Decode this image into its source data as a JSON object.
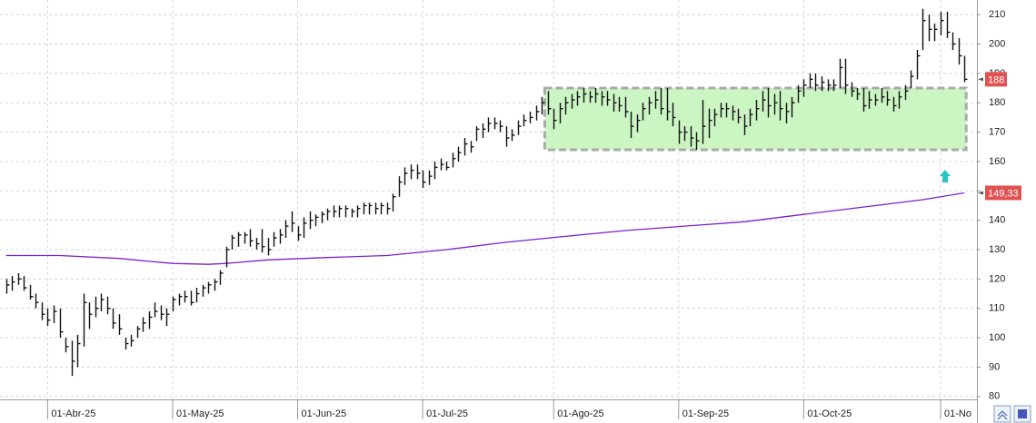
{
  "chart_data": {
    "type": "ohlc",
    "xlim": [
      0,
      164.1
    ],
    "ylim": [
      79,
      215
    ],
    "yticks": [
      80,
      90,
      100,
      110,
      120,
      130,
      140,
      150,
      160,
      170,
      180,
      190,
      200,
      210
    ],
    "xticks": [
      {
        "value": 8,
        "label": "01-Abr-25"
      },
      {
        "value": 29,
        "label": "01-May-25"
      },
      {
        "value": 50,
        "label": "01-Jun-25"
      },
      {
        "value": 71,
        "label": "01-Jul-25"
      },
      {
        "value": 93,
        "label": "01-Ago-25"
      },
      {
        "value": 114,
        "label": "01-Sep-25"
      },
      {
        "value": 135,
        "label": "01-Oct-25"
      },
      {
        "value": 158,
        "label": "01-No"
      }
    ],
    "grid": true,
    "ohlc": {
      "color": "#111111",
      "start": 1,
      "high": [
        120,
        121,
        122,
        121,
        118,
        115,
        112,
        110,
        111,
        110,
        100,
        99,
        101,
        115,
        112,
        114,
        115,
        114,
        110,
        108,
        100,
        101,
        104,
        107,
        109,
        112,
        111,
        110,
        114,
        115,
        116,
        116,
        117,
        118,
        119,
        120,
        123,
        131,
        135,
        136,
        136,
        137,
        134,
        137,
        134,
        136,
        137,
        140,
        143,
        138,
        141,
        143,
        142,
        143,
        144,
        145,
        145,
        145,
        144,
        145,
        146,
        146,
        146,
        146,
        146,
        149,
        155,
        158,
        159,
        159,
        157,
        157,
        160,
        161,
        160,
        163,
        165,
        168,
        167,
        172,
        173,
        175,
        175,
        174,
        172,
        171,
        174,
        176,
        177,
        179,
        182,
        184,
        178,
        180,
        182,
        183,
        184,
        185,
        184,
        185,
        184,
        184,
        183,
        182,
        182,
        177,
        176,
        180,
        182,
        184,
        185,
        185,
        180,
        174,
        172,
        172,
        170,
        181,
        178,
        178,
        180,
        180,
        179,
        178,
        176,
        178,
        181,
        184,
        185,
        183,
        184,
        180,
        182,
        186,
        188,
        190,
        190,
        189,
        188,
        188,
        195,
        195,
        187,
        185,
        185,
        184,
        183,
        185,
        184,
        182,
        184,
        186,
        191,
        198,
        212,
        210,
        207,
        211,
        211,
        204,
        202,
        196
      ],
      "low": [
        115,
        116,
        118,
        116,
        113,
        110,
        106,
        104,
        105,
        100,
        95,
        87,
        90,
        97,
        103,
        107,
        109,
        108,
        103,
        101,
        96,
        97,
        100,
        102,
        103,
        107,
        106,
        104,
        109,
        111,
        112,
        111,
        112,
        114,
        115,
        116,
        118,
        124,
        130,
        131,
        132,
        131,
        130,
        129,
        128,
        131,
        132,
        134,
        136,
        133,
        134,
        137,
        138,
        139,
        140,
        141,
        141,
        141,
        141,
        141,
        142,
        142,
        142,
        142,
        142,
        143,
        148,
        152,
        154,
        154,
        151,
        152,
        154,
        157,
        157,
        158,
        160,
        162,
        163,
        167,
        168,
        170,
        171,
        170,
        165,
        167,
        169,
        172,
        173,
        174,
        176,
        176,
        171,
        173,
        176,
        178,
        179,
        180,
        180,
        180,
        179,
        179,
        177,
        177,
        175,
        168,
        170,
        174,
        176,
        178,
        176,
        174,
        172,
        166,
        167,
        165,
        164,
        166,
        168,
        172,
        175,
        175,
        174,
        173,
        169,
        172,
        174,
        177,
        175,
        176,
        174,
        173,
        175,
        180,
        182,
        185,
        184,
        184,
        184,
        184,
        185,
        183,
        182,
        181,
        177,
        178,
        179,
        180,
        179,
        177,
        178,
        181,
        185,
        188,
        198,
        201,
        201,
        203,
        202,
        198,
        193,
        187
      ],
      "close": [
        118,
        119,
        120,
        117,
        114,
        112,
        108,
        106,
        109,
        102,
        97,
        92,
        98,
        112,
        108,
        110,
        113,
        110,
        105,
        103,
        98,
        99,
        103,
        105,
        107,
        109,
        108,
        108,
        113,
        114,
        114,
        112,
        115,
        117,
        118,
        119,
        122,
        130,
        134,
        135,
        135,
        133,
        132,
        131,
        130,
        134,
        135,
        138,
        139,
        135,
        139,
        140,
        141,
        142,
        143,
        143,
        144,
        144,
        143,
        144,
        145,
        145,
        144,
        145,
        144,
        148,
        153,
        156,
        157,
        156,
        153,
        155,
        158,
        159,
        158,
        161,
        163,
        166,
        165,
        171,
        171,
        173,
        173,
        172,
        168,
        169,
        172,
        174,
        175,
        177,
        180,
        178,
        174,
        178,
        180,
        181,
        182,
        183,
        182,
        183,
        182,
        181,
        180,
        179,
        177,
        172,
        174,
        178,
        180,
        181,
        178,
        177,
        175,
        170,
        170,
        168,
        167,
        172,
        174,
        176,
        178,
        178,
        177,
        175,
        172,
        176,
        178,
        181,
        179,
        180,
        178,
        177,
        180,
        184,
        186,
        188,
        186,
        187,
        186,
        186,
        192,
        186,
        184,
        183,
        179,
        181,
        181,
        182,
        181,
        179,
        182,
        184,
        189,
        196,
        208,
        205,
        205,
        208,
        204,
        200,
        196,
        188
      ]
    },
    "ma": {
      "color": "#7a1fd0",
      "x": [
        1,
        10,
        20,
        25,
        29,
        35,
        38,
        45,
        55,
        65,
        75,
        85,
        95,
        105,
        115,
        125,
        135,
        145,
        155,
        162
      ],
      "values": [
        128,
        128,
        127,
        126,
        125.3,
        125,
        125.3,
        126.5,
        127.3,
        128,
        130,
        132.5,
        134.5,
        136.5,
        138,
        139.5,
        142,
        144.5,
        147,
        149.33
      ]
    },
    "zone": {
      "x": [
        91.5,
        162.3
      ],
      "y": [
        164,
        185
      ],
      "color": "#ccf5c4"
    },
    "last_price": {
      "value": 188,
      "label": "188"
    },
    "ma_last": {
      "value": 149.33,
      "label": "149,33"
    }
  }
}
